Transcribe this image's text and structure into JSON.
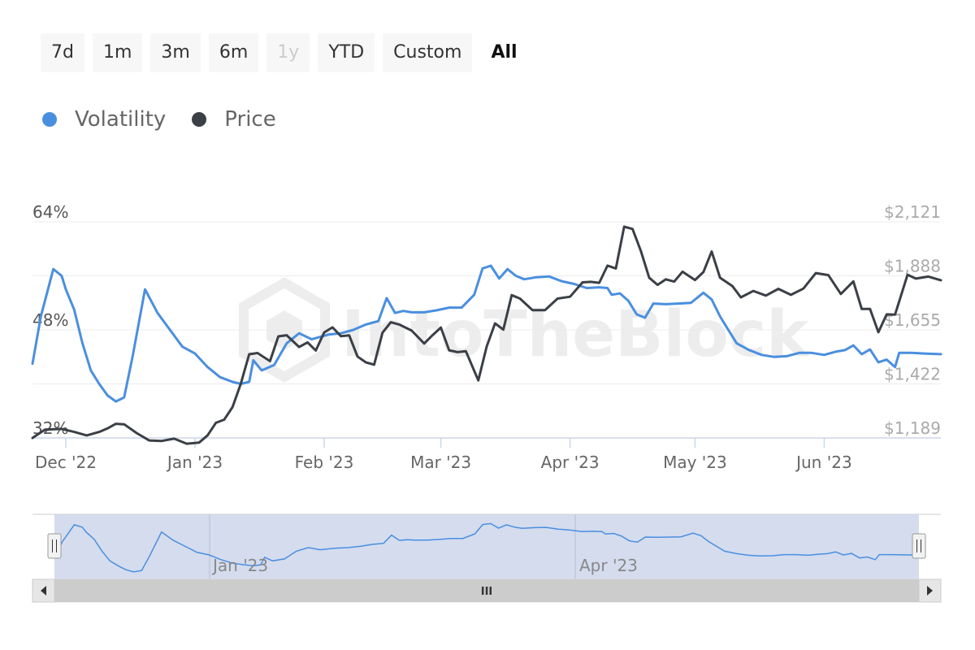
{
  "range_selector": {
    "buttons": [
      {
        "label": "7d",
        "state": "normal"
      },
      {
        "label": "1m",
        "state": "normal"
      },
      {
        "label": "3m",
        "state": "normal"
      },
      {
        "label": "6m",
        "state": "normal"
      },
      {
        "label": "1y",
        "state": "disabled"
      },
      {
        "label": "YTD",
        "state": "normal"
      },
      {
        "label": "Custom",
        "state": "normal"
      },
      {
        "label": "All",
        "state": "selected"
      }
    ]
  },
  "legend": {
    "items": [
      {
        "label": "Volatility",
        "color": "#4a8fdf"
      },
      {
        "label": "Price",
        "color": "#3b3f46"
      }
    ]
  },
  "watermark": "IntoTheBlock",
  "navigator": {
    "labels": [
      "Jan '23",
      "Apr '23"
    ],
    "scrollbar_grip": "III",
    "left_arrow_icon": "arrow-left",
    "right_arrow_icon": "arrow-right"
  },
  "chart_data": {
    "type": "line",
    "x_ticks": [
      "Dec '22",
      "Jan '23",
      "Feb '23",
      "Mar '23",
      "Apr '23",
      "May '23",
      "Jun '23"
    ],
    "y_left": {
      "ticks": [
        "64%",
        "48%",
        "32%"
      ],
      "range": [
        32,
        64
      ],
      "unit": "%"
    },
    "y_right": {
      "ticks": [
        "$2,121",
        "$1,888",
        "$1,655",
        "$1,422",
        "$1,189"
      ],
      "range": [
        1189,
        2121
      ],
      "unit": "USD"
    },
    "x_range": [
      "2022-11-23",
      "2023-06-29"
    ],
    "series": [
      {
        "name": "Volatility",
        "axis": "left",
        "color": "#4a8fdf",
        "points": [
          [
            "2022-11-23",
            43.0
          ],
          [
            "2022-11-25",
            50.0
          ],
          [
            "2022-11-28",
            57.0
          ],
          [
            "2022-11-30",
            56.0
          ],
          [
            "2022-12-01",
            54.0
          ],
          [
            "2022-12-03",
            51.0
          ],
          [
            "2022-12-05",
            46.0
          ],
          [
            "2022-12-07",
            42.0
          ],
          [
            "2022-12-09",
            40.0
          ],
          [
            "2022-12-11",
            38.3
          ],
          [
            "2022-12-13",
            37.4
          ],
          [
            "2022-12-15",
            38.0
          ],
          [
            "2022-12-17",
            44.0
          ],
          [
            "2022-12-20",
            54.0
          ],
          [
            "2022-12-23",
            50.5
          ],
          [
            "2022-12-26",
            48.0
          ],
          [
            "2022-12-29",
            45.5
          ],
          [
            "2023-01-01",
            44.5
          ],
          [
            "2023-01-04",
            42.5
          ],
          [
            "2023-01-07",
            41.0
          ],
          [
            "2023-01-10",
            40.3
          ],
          [
            "2023-01-12",
            40.0
          ],
          [
            "2023-01-14",
            40.3
          ],
          [
            "2023-01-15",
            43.5
          ],
          [
            "2023-01-17",
            42.0
          ],
          [
            "2023-01-20",
            42.8
          ],
          [
            "2023-01-23",
            46.0
          ],
          [
            "2023-01-26",
            47.5
          ],
          [
            "2023-01-29",
            46.6
          ],
          [
            "2023-02-02",
            47.3
          ],
          [
            "2023-02-05",
            47.5
          ],
          [
            "2023-02-08",
            48.0
          ],
          [
            "2023-02-11",
            48.8
          ],
          [
            "2023-02-14",
            49.3
          ],
          [
            "2023-02-16",
            52.7
          ],
          [
            "2023-02-18",
            50.5
          ],
          [
            "2023-02-20",
            50.8
          ],
          [
            "2023-02-22",
            50.6
          ],
          [
            "2023-02-25",
            50.6
          ],
          [
            "2023-02-28",
            50.9
          ],
          [
            "2023-03-03",
            51.3
          ],
          [
            "2023-03-06",
            51.3
          ],
          [
            "2023-03-09",
            53.2
          ],
          [
            "2023-03-11",
            57.1
          ],
          [
            "2023-03-13",
            57.5
          ],
          [
            "2023-03-15",
            55.6
          ],
          [
            "2023-03-17",
            57.0
          ],
          [
            "2023-03-19",
            56.0
          ],
          [
            "2023-03-21",
            55.5
          ],
          [
            "2023-03-24",
            55.8
          ],
          [
            "2023-03-27",
            55.9
          ],
          [
            "2023-03-30",
            55.2
          ],
          [
            "2023-04-02",
            54.8
          ],
          [
            "2023-04-05",
            54.2
          ],
          [
            "2023-04-08",
            54.3
          ],
          [
            "2023-04-10",
            54.2
          ],
          [
            "2023-04-11",
            53.2
          ],
          [
            "2023-04-13",
            53.4
          ],
          [
            "2023-04-15",
            52.3
          ],
          [
            "2023-04-17",
            50.3
          ],
          [
            "2023-04-19",
            49.8
          ],
          [
            "2023-04-21",
            51.9
          ],
          [
            "2023-04-24",
            51.8
          ],
          [
            "2023-04-27",
            51.9
          ],
          [
            "2023-04-30",
            52.0
          ],
          [
            "2023-05-03",
            53.5
          ],
          [
            "2023-05-05",
            52.5
          ],
          [
            "2023-05-07",
            50.0
          ],
          [
            "2023-05-09",
            48.0
          ],
          [
            "2023-05-11",
            46.0
          ],
          [
            "2023-05-14",
            45.0
          ],
          [
            "2023-05-17",
            44.3
          ],
          [
            "2023-05-20",
            44.0
          ],
          [
            "2023-05-23",
            44.1
          ],
          [
            "2023-05-26",
            44.6
          ],
          [
            "2023-05-29",
            44.6
          ],
          [
            "2023-06-01",
            44.3
          ],
          [
            "2023-06-04",
            44.8
          ],
          [
            "2023-06-06",
            45.0
          ],
          [
            "2023-06-08",
            45.7
          ],
          [
            "2023-06-10",
            44.4
          ],
          [
            "2023-06-12",
            45.1
          ],
          [
            "2023-06-14",
            43.2
          ],
          [
            "2023-06-16",
            43.6
          ],
          [
            "2023-06-18",
            42.5
          ],
          [
            "2023-06-19",
            44.6
          ],
          [
            "2023-06-22",
            44.6
          ],
          [
            "2023-06-25",
            44.5
          ],
          [
            "2023-06-29",
            44.4
          ]
        ]
      },
      {
        "name": "Price",
        "axis": "right",
        "color": "#3b3f46",
        "points": [
          [
            "2022-11-23",
            1189
          ],
          [
            "2022-11-26",
            1225
          ],
          [
            "2022-11-30",
            1228
          ],
          [
            "2022-12-03",
            1215
          ],
          [
            "2022-12-06",
            1200
          ],
          [
            "2022-12-09",
            1215
          ],
          [
            "2022-12-11",
            1230
          ],
          [
            "2022-12-13",
            1250
          ],
          [
            "2022-12-15",
            1248
          ],
          [
            "2022-12-18",
            1210
          ],
          [
            "2022-12-21",
            1178
          ],
          [
            "2022-12-24",
            1176
          ],
          [
            "2022-12-27",
            1186
          ],
          [
            "2022-12-30",
            1164
          ],
          [
            "2023-01-02",
            1169
          ],
          [
            "2023-01-04",
            1200
          ],
          [
            "2023-01-06",
            1254
          ],
          [
            "2023-01-08",
            1268
          ],
          [
            "2023-01-10",
            1322
          ],
          [
            "2023-01-12",
            1423
          ],
          [
            "2023-01-14",
            1550
          ],
          [
            "2023-01-16",
            1555
          ],
          [
            "2023-01-19",
            1520
          ],
          [
            "2023-01-21",
            1627
          ],
          [
            "2023-01-23",
            1632
          ],
          [
            "2023-01-26",
            1581
          ],
          [
            "2023-01-28",
            1601
          ],
          [
            "2023-01-30",
            1566
          ],
          [
            "2023-02-01",
            1644
          ],
          [
            "2023-02-03",
            1666
          ],
          [
            "2023-02-05",
            1628
          ],
          [
            "2023-02-07",
            1631
          ],
          [
            "2023-02-09",
            1540
          ],
          [
            "2023-02-11",
            1515
          ],
          [
            "2023-02-13",
            1505
          ],
          [
            "2023-02-15",
            1643
          ],
          [
            "2023-02-17",
            1688
          ],
          [
            "2023-02-19",
            1678
          ],
          [
            "2023-02-22",
            1652
          ],
          [
            "2023-02-25",
            1596
          ],
          [
            "2023-02-27",
            1632
          ],
          [
            "2023-03-01",
            1665
          ],
          [
            "2023-03-03",
            1567
          ],
          [
            "2023-03-05",
            1559
          ],
          [
            "2023-03-07",
            1563
          ],
          [
            "2023-03-10",
            1437
          ],
          [
            "2023-03-12",
            1583
          ],
          [
            "2023-03-14",
            1683
          ],
          [
            "2023-03-16",
            1656
          ],
          [
            "2023-03-18",
            1805
          ],
          [
            "2023-03-20",
            1790
          ],
          [
            "2023-03-23",
            1740
          ],
          [
            "2023-03-26",
            1740
          ],
          [
            "2023-03-29",
            1790
          ],
          [
            "2023-04-01",
            1798
          ],
          [
            "2023-04-04",
            1860
          ],
          [
            "2023-04-06",
            1862
          ],
          [
            "2023-04-08",
            1858
          ],
          [
            "2023-04-10",
            1932
          ],
          [
            "2023-04-12",
            1920
          ],
          [
            "2023-04-14",
            2100
          ],
          [
            "2023-04-16",
            2090
          ],
          [
            "2023-04-18",
            1995
          ],
          [
            "2023-04-20",
            1880
          ],
          [
            "2023-04-22",
            1849
          ],
          [
            "2023-04-24",
            1873
          ],
          [
            "2023-04-26",
            1863
          ],
          [
            "2023-04-28",
            1906
          ],
          [
            "2023-05-01",
            1870
          ],
          [
            "2023-05-03",
            1904
          ],
          [
            "2023-05-05",
            1993
          ],
          [
            "2023-05-07",
            1880
          ],
          [
            "2023-05-10",
            1843
          ],
          [
            "2023-05-12",
            1795
          ],
          [
            "2023-05-15",
            1823
          ],
          [
            "2023-05-18",
            1803
          ],
          [
            "2023-05-21",
            1832
          ],
          [
            "2023-05-24",
            1806
          ],
          [
            "2023-05-27",
            1833
          ],
          [
            "2023-05-30",
            1900
          ],
          [
            "2023-06-02",
            1891
          ],
          [
            "2023-06-05",
            1810
          ],
          [
            "2023-06-08",
            1864
          ],
          [
            "2023-06-10",
            1745
          ],
          [
            "2023-06-12",
            1745
          ],
          [
            "2023-06-14",
            1645
          ],
          [
            "2023-06-16",
            1722
          ],
          [
            "2023-06-18",
            1721
          ],
          [
            "2023-06-21",
            1893
          ],
          [
            "2023-06-23",
            1876
          ],
          [
            "2023-06-26",
            1885
          ],
          [
            "2023-06-29",
            1869
          ]
        ]
      }
    ]
  }
}
